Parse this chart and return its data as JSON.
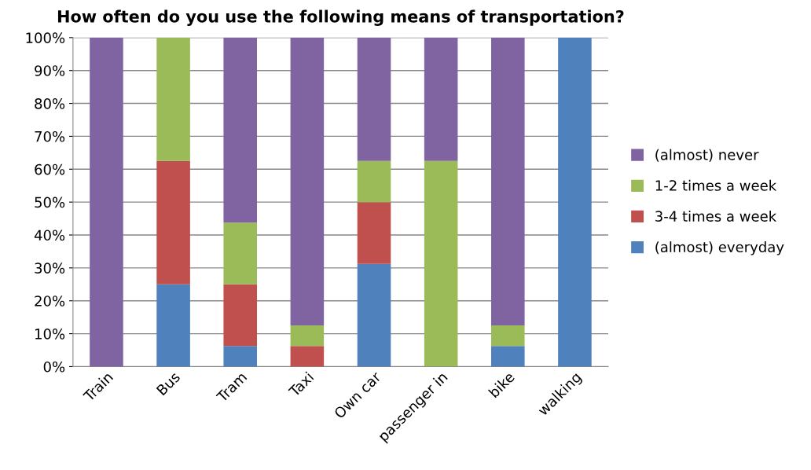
{
  "chart_data": {
    "type": "bar",
    "stacked": true,
    "title": "How often do you use the following means of transportation?",
    "categories": [
      "Train",
      "Bus",
      "Tram",
      "Taxi",
      "Own car",
      "passenger in",
      "bike",
      "walking"
    ],
    "series": [
      {
        "name": "(almost) everyday",
        "color": "#4f81bd",
        "values": [
          0,
          25,
          6.25,
          0,
          31.25,
          0,
          6.25,
          100
        ]
      },
      {
        "name": "3-4 times a week",
        "color": "#c0504d",
        "values": [
          0,
          37.5,
          18.75,
          6.25,
          18.75,
          0,
          0,
          0
        ]
      },
      {
        "name": "1-2 times a week",
        "color": "#9bbb59",
        "values": [
          0,
          37.5,
          18.75,
          6.25,
          12.5,
          62.5,
          6.25,
          0
        ]
      },
      {
        "name": "(almost) never",
        "color": "#8064a2",
        "values": [
          100,
          0,
          56.25,
          87.5,
          37.5,
          37.5,
          87.5,
          0
        ]
      }
    ],
    "ylim": [
      0,
      100
    ],
    "yticks": [
      {
        "value": 0,
        "label": "0%"
      },
      {
        "value": 10,
        "label": "10%"
      },
      {
        "value": 20,
        "label": "20%"
      },
      {
        "value": 30,
        "label": "30%"
      },
      {
        "value": 40,
        "label": "40%"
      },
      {
        "value": 50,
        "label": "50%"
      },
      {
        "value": 60,
        "label": "60%"
      },
      {
        "value": 70,
        "label": "70%"
      },
      {
        "value": 80,
        "label": "80%"
      },
      {
        "value": 90,
        "label": "90%"
      },
      {
        "value": 100,
        "label": "100%"
      }
    ],
    "grid": "y",
    "legend": "right"
  }
}
